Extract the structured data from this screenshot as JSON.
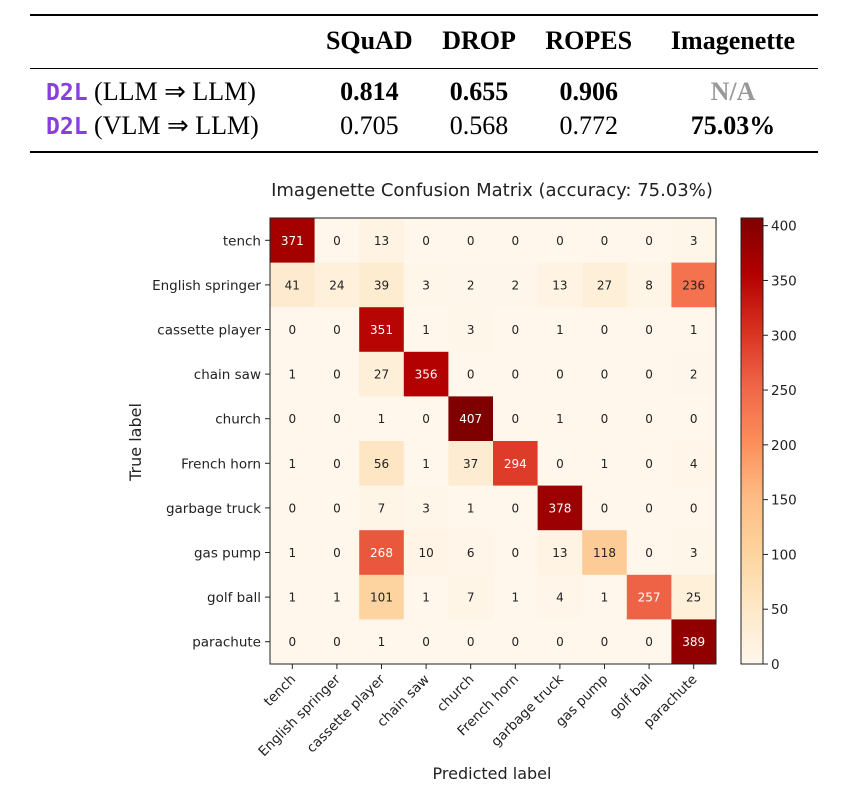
{
  "table": {
    "columns": [
      "",
      "SQuAD",
      "DROP",
      "ROPES",
      "Imagenette"
    ],
    "rows": [
      {
        "method": "D2L",
        "setting": " (LLM ⇒ LLM)",
        "values": [
          "0.814",
          "0.655",
          "0.906",
          "N/A"
        ]
      },
      {
        "method": "D2L",
        "setting": " (VLM ⇒ LLM)",
        "values": [
          "0.705",
          "0.568",
          "0.772",
          "75.03%"
        ]
      }
    ]
  },
  "chart_data": {
    "type": "heatmap",
    "title": "Imagenette Confusion Matrix (accuracy: 75.03%)",
    "xlabel": "Predicted label",
    "ylabel": "True label",
    "labels": [
      "tench",
      "English springer",
      "cassette player",
      "chain saw",
      "church",
      "French horn",
      "garbage truck",
      "gas pump",
      "golf ball",
      "parachute"
    ],
    "matrix": [
      [
        371,
        0,
        13,
        0,
        0,
        0,
        0,
        0,
        0,
        3
      ],
      [
        41,
        24,
        39,
        3,
        2,
        2,
        13,
        27,
        8,
        236
      ],
      [
        0,
        0,
        351,
        1,
        3,
        0,
        1,
        0,
        0,
        1
      ],
      [
        1,
        0,
        27,
        356,
        0,
        0,
        0,
        0,
        0,
        2
      ],
      [
        0,
        0,
        1,
        0,
        407,
        0,
        1,
        0,
        0,
        0
      ],
      [
        1,
        0,
        56,
        1,
        37,
        294,
        0,
        1,
        0,
        4
      ],
      [
        0,
        0,
        7,
        3,
        1,
        0,
        378,
        0,
        0,
        0
      ],
      [
        1,
        0,
        268,
        10,
        6,
        0,
        13,
        118,
        0,
        3
      ],
      [
        1,
        1,
        101,
        1,
        7,
        1,
        4,
        1,
        257,
        25
      ],
      [
        0,
        0,
        1,
        0,
        0,
        0,
        0,
        0,
        0,
        389
      ]
    ],
    "colorbar": {
      "range": [
        0,
        407
      ],
      "ticks": [
        "0",
        "50",
        "100",
        "150",
        "200",
        "250",
        "300",
        "350",
        "400"
      ]
    },
    "colormap": [
      "#fff7ec",
      "#fee8c8",
      "#fdd49e",
      "#fdbb84",
      "#fc8d59",
      "#ef6548",
      "#d7301f",
      "#b30000",
      "#7f0000"
    ]
  }
}
